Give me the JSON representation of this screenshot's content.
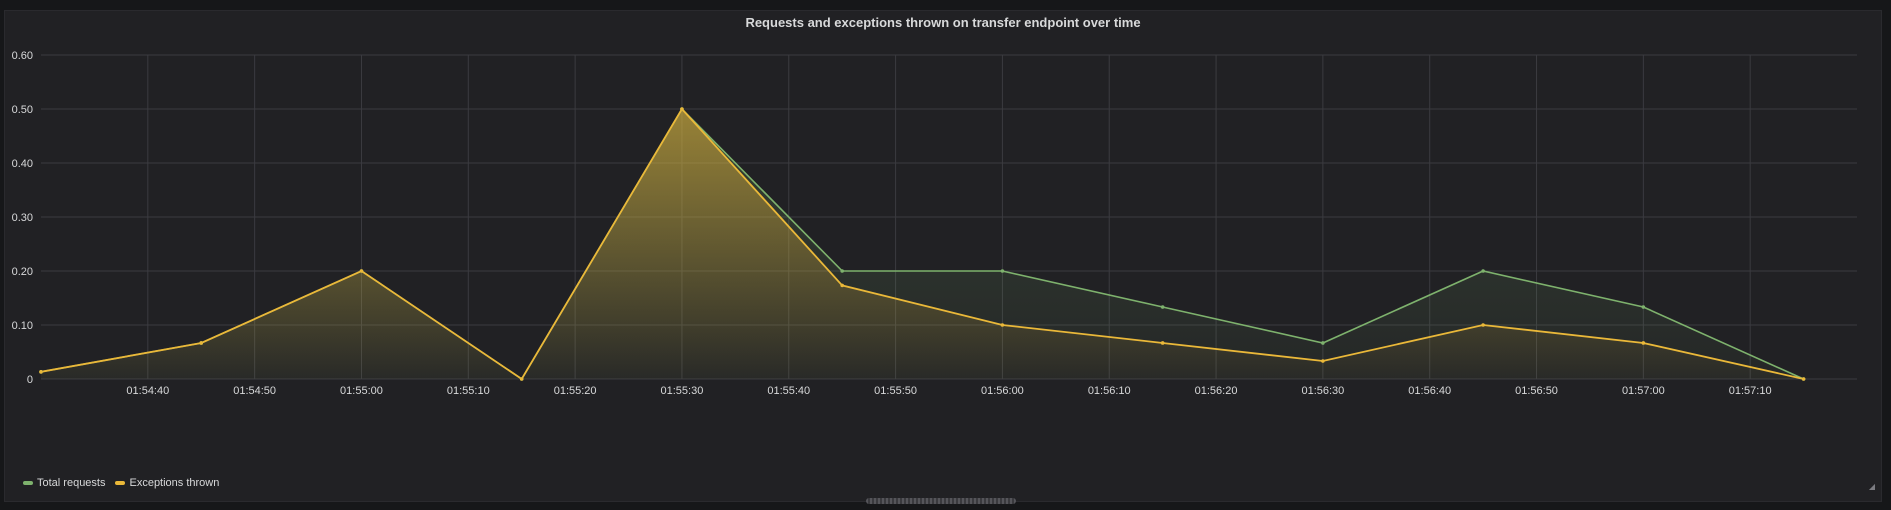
{
  "panel": {
    "title": "Requests and exceptions thrown on transfer endpoint over time"
  },
  "colors": {
    "background": "#212124",
    "grid": "#3b3b40",
    "text": "#d8d9da",
    "total": "#7eb26d",
    "exceptions": "#eab839"
  },
  "chart_data": {
    "type": "area",
    "title": "Requests and exceptions thrown on transfer endpoint over time",
    "xlabel": "",
    "ylabel": "",
    "ylim": [
      0,
      0.6
    ],
    "y_ticks": [
      "0",
      "0.10",
      "0.20",
      "0.30",
      "0.40",
      "0.50",
      "0.60"
    ],
    "y_tick_values": [
      0,
      0.1,
      0.2,
      0.3,
      0.4,
      0.5,
      0.6
    ],
    "x_range": [
      "01:54:30",
      "01:57:20"
    ],
    "x_ticks": [
      "01:54:40",
      "01:54:50",
      "01:55:00",
      "01:55:10",
      "01:55:20",
      "01:55:30",
      "01:55:40",
      "01:55:50",
      "01:56:00",
      "01:56:10",
      "01:56:20",
      "01:56:30",
      "01:56:40",
      "01:56:50",
      "01:57:00",
      "01:57:10"
    ],
    "grid": true,
    "legend_position": "bottom-left",
    "series": [
      {
        "name": "Total requests",
        "color": "#7eb26d",
        "x": [
          "01:54:30",
          "01:54:45",
          "01:55:00",
          "01:55:15",
          "01:55:30",
          "01:55:45",
          "01:56:00",
          "01:56:15",
          "01:56:30",
          "01:56:45",
          "01:57:00",
          "01:57:15"
        ],
        "values": [
          0.0133,
          0.0667,
          0.2,
          0,
          0.5,
          0.2,
          0.2,
          0.1333,
          0.0667,
          0.2,
          0.1333,
          0
        ]
      },
      {
        "name": "Exceptions thrown",
        "color": "#eab839",
        "x": [
          "01:54:30",
          "01:54:45",
          "01:55:00",
          "01:55:15",
          "01:55:30",
          "01:55:45",
          "01:56:00",
          "01:56:15",
          "01:56:30",
          "01:56:45",
          "01:57:00",
          "01:57:15"
        ],
        "values": [
          0.0133,
          0.0667,
          0.2,
          0,
          0.5,
          0.1733,
          0.1,
          0.0667,
          0.0333,
          0.1,
          0.0667,
          0
        ]
      }
    ]
  }
}
